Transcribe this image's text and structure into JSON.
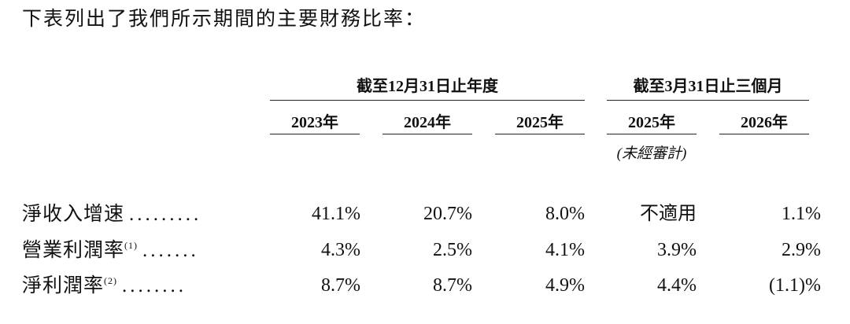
{
  "intro": "下表列出了我們所示期間的主要財務比率：",
  "table": {
    "groups": [
      "截至12月31日止年度",
      "截至3月31日止三個月"
    ],
    "columns": [
      "2023年",
      "2024年",
      "2025年",
      "2025年",
      "2026年"
    ],
    "column_note": "(未經審計)",
    "rows": [
      {
        "label": "淨收入增速",
        "leader": ".........",
        "values": [
          "41.1%",
          "20.7%",
          "8.0%",
          "不適用",
          "1.1%"
        ]
      },
      {
        "label": "營業利潤率",
        "note": "(1)",
        "leader": ".......",
        "values": [
          "4.3%",
          "2.5%",
          "4.1%",
          "3.9%",
          "2.9%"
        ]
      },
      {
        "label": "淨利潤率",
        "note": "(2)",
        "leader": "........",
        "values": [
          "8.7%",
          "8.7%",
          "4.9%",
          "4.4%",
          "(1.1)%"
        ]
      }
    ]
  }
}
